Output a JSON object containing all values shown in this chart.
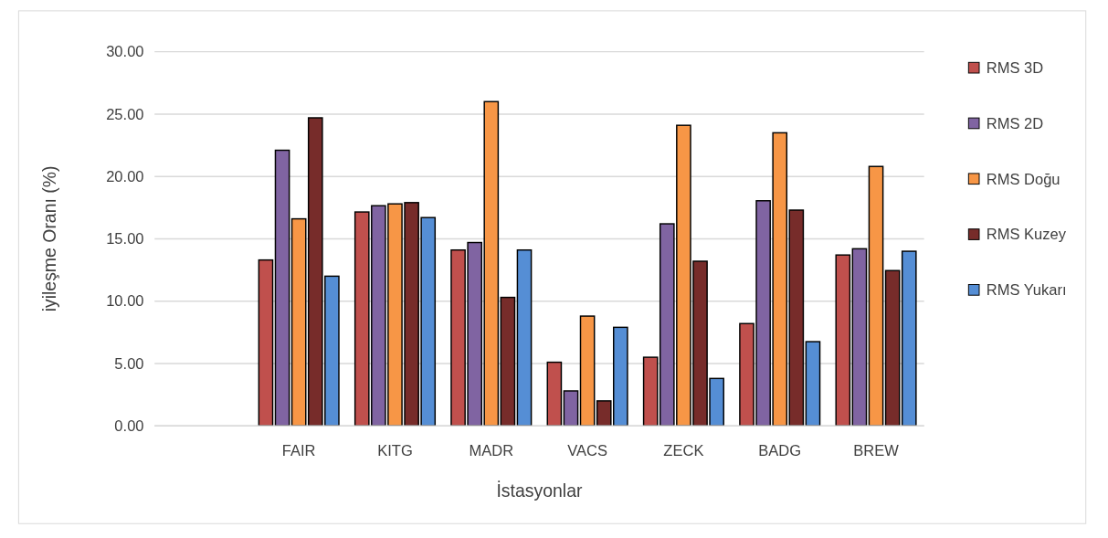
{
  "chart_data": {
    "type": "bar",
    "xlabel": "İstasyonlar",
    "ylabel": "iyileşme Oranı (%)",
    "categories": [
      null,
      "FAIR",
      "KITG",
      "MADR",
      "VACS",
      "ZECK",
      "BADG",
      "BREW"
    ],
    "series": [
      {
        "name": "RMS 3D",
        "color": "#c0504d",
        "values": [
          null,
          13.3,
          17.15,
          14.1,
          5.1,
          5.5,
          8.2,
          13.7
        ]
      },
      {
        "name": "RMS 2D",
        "color": "#8064a2",
        "values": [
          null,
          22.1,
          17.65,
          14.7,
          2.8,
          16.2,
          18.05,
          14.2
        ]
      },
      {
        "name": "RMS Doğu",
        "color": "#f79646",
        "values": [
          null,
          16.6,
          17.8,
          26.0,
          8.8,
          24.1,
          23.5,
          20.8
        ]
      },
      {
        "name": "RMS Kuzey",
        "color": "#772c2a",
        "values": [
          null,
          24.7,
          17.9,
          10.3,
          2.0,
          13.2,
          17.3,
          12.45
        ]
      },
      {
        "name": "RMS Yukarı",
        "color": "#558ed5",
        "values": [
          null,
          12.0,
          16.7,
          14.1,
          7.9,
          3.8,
          6.75,
          14.0
        ]
      }
    ],
    "ylim": [
      0,
      30
    ],
    "yticks": [
      {
        "value": 0,
        "label": "0.00"
      },
      {
        "value": 5,
        "label": "5.00"
      },
      {
        "value": 10,
        "label": "10.00"
      },
      {
        "value": 15,
        "label": "15.00"
      },
      {
        "value": 20,
        "label": "20.00"
      },
      {
        "value": 25,
        "label": "25.00"
      },
      {
        "value": 30,
        "label": "30.00"
      }
    ],
    "grid": "y",
    "legend": "right"
  }
}
